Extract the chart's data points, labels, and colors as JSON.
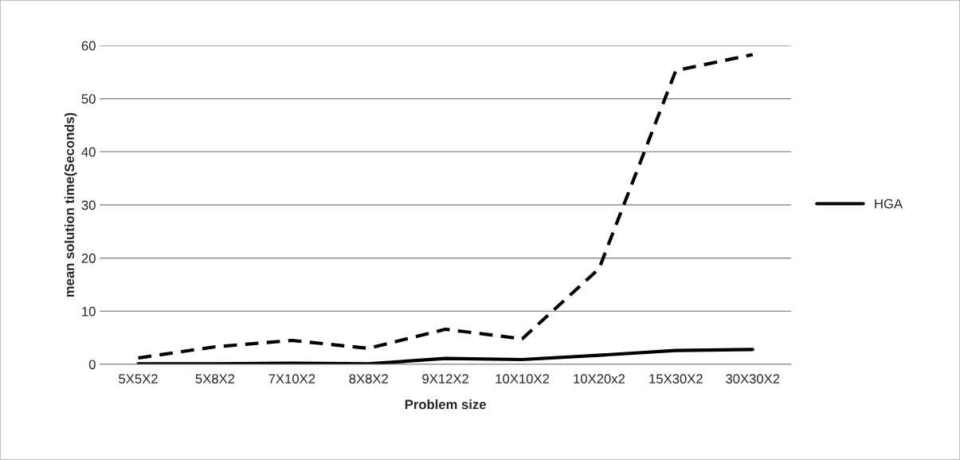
{
  "chart_data": {
    "type": "line",
    "xlabel": "Problem size",
    "ylabel": "mean solution time(Seconds)",
    "categories": [
      "5X5X2",
      "5X8X2",
      "7X10X2",
      "8X8X2",
      "9X12X2",
      "10X10X2",
      "10X20x2",
      "15X30X2",
      "30X30X2"
    ],
    "series": [
      {
        "color": "#000000",
        "line_style": "dashed",
        "values": [
          1.2,
          3.3,
          4.5,
          3.0,
          6.6,
          4.8,
          18,
          55.3,
          58.3
        ]
      },
      {
        "name": "HGA",
        "color": "#000000",
        "line_style": "solid",
        "values": [
          0.1,
          0.1,
          0.2,
          0.1,
          1.1,
          0.9,
          1.7,
          2.6,
          2.8
        ]
      }
    ],
    "ylim": [
      0,
      60
    ],
    "yticks": [
      0,
      10,
      20,
      30,
      40,
      50,
      60
    ],
    "grid": "y",
    "legend": "right",
    "marker": "none"
  }
}
